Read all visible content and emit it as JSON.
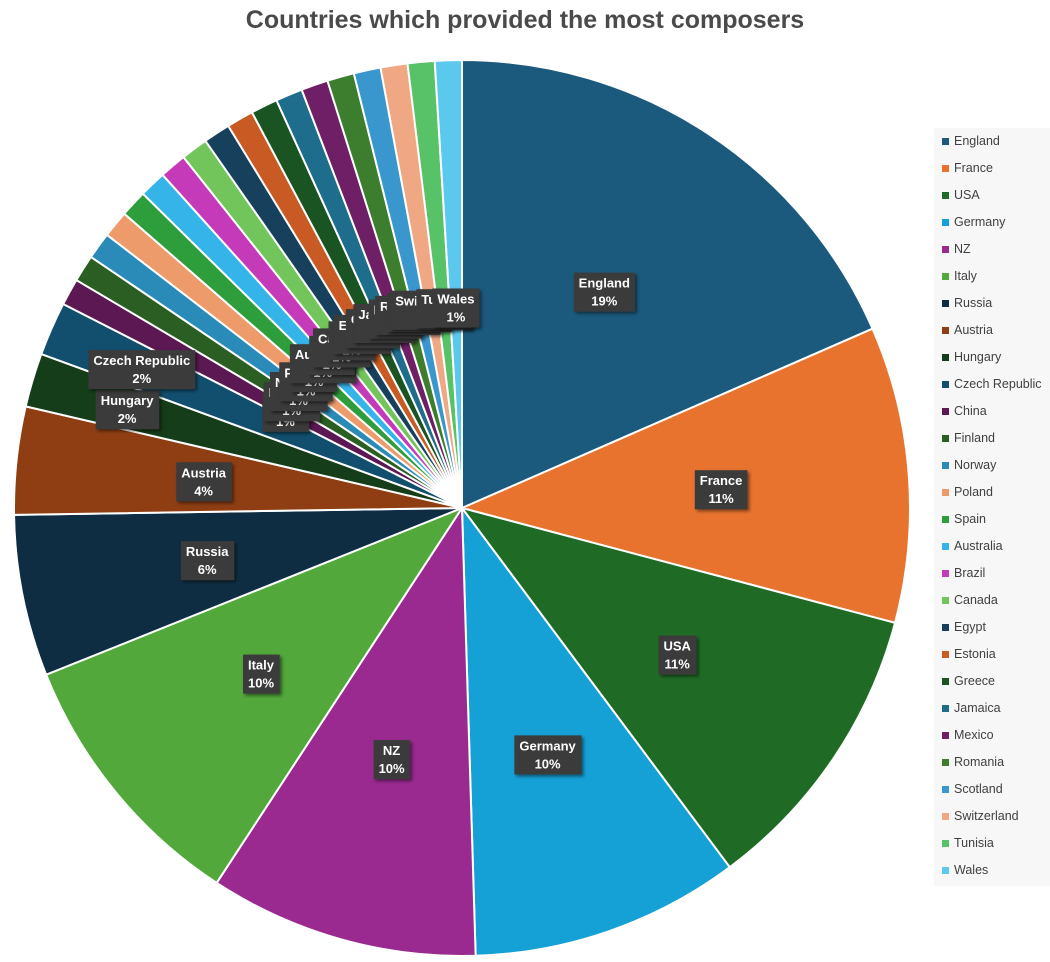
{
  "chart_data": {
    "type": "pie",
    "title": "Countries which provided the most composers",
    "categories": [
      "England",
      "France",
      "USA",
      "Germany",
      "NZ",
      "Italy",
      "Russia",
      "Austria",
      "Hungary",
      "Czech Republic",
      "China",
      "Finland",
      "Norway",
      "Poland",
      "Spain",
      "Australia",
      "Brazil",
      "Canada",
      "Egypt",
      "Estonia",
      "Greece",
      "Jamaica",
      "Mexico",
      "Romania",
      "Scotland",
      "Switzerland",
      "Tunisia",
      "Wales"
    ],
    "values": [
      19,
      11,
      11,
      10,
      10,
      10,
      6,
      4,
      2,
      2,
      1,
      1,
      1,
      1,
      1,
      1,
      1,
      1,
      1,
      1,
      1,
      1,
      1,
      1,
      1,
      1,
      1,
      1
    ],
    "value_labels": [
      "19%",
      "11%",
      "11%",
      "10%",
      "10%",
      "10%",
      "6%",
      "4%",
      "2%",
      "2%",
      "1%",
      "1%",
      "1%",
      "1%",
      "1%",
      "1%",
      "1%",
      "1%",
      "1%",
      "1%",
      "1%",
      "1%",
      "1%",
      "1%",
      "1%",
      "1%",
      "1%",
      "1%"
    ],
    "colors": [
      "#1b5a7d",
      "#e8732f",
      "#1f6b26",
      "#15a0d6",
      "#9a2a90",
      "#52a83a",
      "#0f2d42",
      "#8f3e13",
      "#153d19",
      "#124f6e",
      "#5b1852",
      "#2a5e23",
      "#2a8ab8",
      "#ee9b6c",
      "#2e9e3c",
      "#35b4ea",
      "#c43ab8",
      "#71c55a",
      "#17405c",
      "#c95a23",
      "#1a5423",
      "#1e6d8c",
      "#6f1f66",
      "#3d7d2e",
      "#3a97cd",
      "#f0a884",
      "#57c267",
      "#5bc8ee"
    ],
    "legend_position": "right"
  }
}
